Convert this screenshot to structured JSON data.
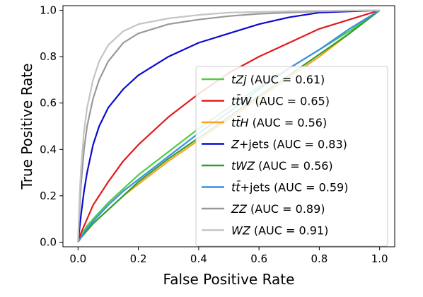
{
  "chart_data": {
    "type": "line",
    "xlabel": "False Positive Rate",
    "ylabel": "True Positive Rate",
    "xlim": [
      -0.05,
      1.05
    ],
    "ylim": [
      -0.02,
      1.02
    ],
    "xticks": [
      "0.0",
      "0.2",
      "0.4",
      "0.6",
      "0.8",
      "1.0"
    ],
    "yticks": [
      "0.0",
      "0.2",
      "0.4",
      "0.6",
      "0.8",
      "1.0"
    ],
    "grid": false,
    "legend_position": "lower-right",
    "series": [
      {
        "name": "tZj (AUC = 0.61)",
        "name_parts": [
          "tZj",
          " (AUC = 0.61)"
        ],
        "color": "#4fce3f",
        "x": [
          0.0,
          0.01,
          0.03,
          0.05,
          0.1,
          0.15,
          0.2,
          0.3,
          0.4,
          0.5,
          0.6,
          0.7,
          0.8,
          0.9,
          1.0
        ],
        "y": [
          0.0,
          0.03,
          0.07,
          0.1,
          0.17,
          0.23,
          0.29,
          0.39,
          0.49,
          0.58,
          0.67,
          0.75,
          0.83,
          0.91,
          1.0
        ]
      },
      {
        "name": "ttW (AUC = 0.65)",
        "name_parts": [
          "tt̄W",
          " (AUC = 0.65)"
        ],
        "color": "#e31a1c",
        "x": [
          0.0,
          0.01,
          0.03,
          0.05,
          0.1,
          0.15,
          0.2,
          0.3,
          0.4,
          0.5,
          0.6,
          0.7,
          0.8,
          0.9,
          1.0
        ],
        "y": [
          0.0,
          0.04,
          0.1,
          0.16,
          0.26,
          0.35,
          0.42,
          0.54,
          0.64,
          0.73,
          0.8,
          0.86,
          0.92,
          0.96,
          1.0
        ]
      },
      {
        "name": "ttH (AUC = 0.56)",
        "name_parts": [
          "tt̄H",
          " (AUC = 0.56)"
        ],
        "color": "#ff9f1c",
        "x": [
          0.0,
          0.01,
          0.03,
          0.05,
          0.1,
          0.15,
          0.2,
          0.3,
          0.4,
          0.5,
          0.6,
          0.7,
          0.8,
          0.9,
          1.0
        ],
        "y": [
          0.0,
          0.02,
          0.05,
          0.08,
          0.14,
          0.2,
          0.25,
          0.35,
          0.44,
          0.53,
          0.62,
          0.71,
          0.8,
          0.9,
          1.0
        ]
      },
      {
        "name": "Z+jets (AUC = 0.83)",
        "name_parts": [
          "Z",
          "+jets (AUC = 0.83)"
        ],
        "color": "#0a0acf",
        "x": [
          0.0,
          0.01,
          0.02,
          0.03,
          0.05,
          0.07,
          0.1,
          0.15,
          0.2,
          0.3,
          0.4,
          0.5,
          0.6,
          0.7,
          0.8,
          0.9,
          1.0
        ],
        "y": [
          0.0,
          0.12,
          0.22,
          0.3,
          0.42,
          0.5,
          0.58,
          0.66,
          0.72,
          0.8,
          0.86,
          0.9,
          0.94,
          0.97,
          0.99,
          0.995,
          1.0
        ]
      },
      {
        "name": "tWZ (AUC = 0.56)",
        "name_parts": [
          "tWZ",
          " (AUC = 0.56)"
        ],
        "color": "#2ca02c",
        "x": [
          0.0,
          0.01,
          0.03,
          0.05,
          0.1,
          0.15,
          0.2,
          0.3,
          0.4,
          0.5,
          0.6,
          0.7,
          0.8,
          0.9,
          1.0
        ],
        "y": [
          0.0,
          0.02,
          0.05,
          0.08,
          0.14,
          0.2,
          0.26,
          0.36,
          0.45,
          0.54,
          0.63,
          0.72,
          0.81,
          0.9,
          1.0
        ]
      },
      {
        "name": "tt+jets (AUC = 0.59)",
        "name_parts": [
          "tt̄",
          "+jets (AUC = 0.59)"
        ],
        "color": "#3a8ee6",
        "x": [
          0.0,
          0.01,
          0.03,
          0.05,
          0.1,
          0.15,
          0.2,
          0.3,
          0.4,
          0.5,
          0.6,
          0.7,
          0.8,
          0.9,
          1.0
        ],
        "y": [
          0.0,
          0.02,
          0.06,
          0.09,
          0.16,
          0.22,
          0.27,
          0.37,
          0.47,
          0.56,
          0.66,
          0.75,
          0.83,
          0.92,
          1.0
        ]
      },
      {
        "name": "ZZ (AUC = 0.89)",
        "name_parts": [
          "ZZ",
          " (AUC = 0.89)"
        ],
        "color": "#999999",
        "x": [
          0.0,
          0.005,
          0.01,
          0.02,
          0.03,
          0.05,
          0.07,
          0.1,
          0.15,
          0.2,
          0.3,
          0.4,
          0.5,
          0.6,
          0.7,
          0.8,
          0.9,
          1.0
        ],
        "y": [
          0.0,
          0.15,
          0.25,
          0.4,
          0.5,
          0.62,
          0.7,
          0.78,
          0.86,
          0.9,
          0.94,
          0.96,
          0.975,
          0.985,
          0.99,
          0.995,
          0.998,
          1.0
        ]
      },
      {
        "name": "WZ (AUC = 0.91)",
        "name_parts": [
          "WZ",
          " (AUC = 0.91)"
        ],
        "color": "#c4c4c4",
        "x": [
          0.0,
          0.005,
          0.01,
          0.02,
          0.03,
          0.05,
          0.07,
          0.1,
          0.15,
          0.2,
          0.3,
          0.4,
          0.5,
          0.6,
          0.7,
          0.8,
          0.9,
          1.0
        ],
        "y": [
          0.0,
          0.2,
          0.32,
          0.48,
          0.58,
          0.7,
          0.78,
          0.85,
          0.91,
          0.94,
          0.965,
          0.98,
          0.99,
          0.993,
          0.996,
          0.998,
          0.999,
          1.0
        ]
      }
    ]
  }
}
